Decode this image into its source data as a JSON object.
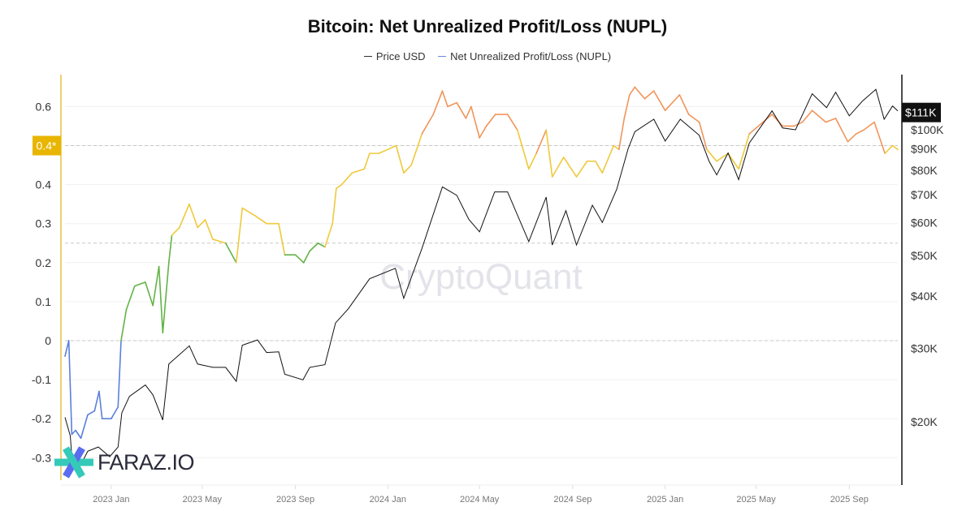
{
  "chart_data": {
    "type": "line",
    "title": "Bitcoin: Net Unrealized Profit/Loss (NUPL)",
    "legend": {
      "placement": "top-center",
      "items": [
        "Price USD",
        "Net Unrealized Profit/Loss (NUPL)"
      ]
    },
    "x_ticks": [
      "2023 Jan",
      "2023 May",
      "2023 Sep",
      "2024 Jan",
      "2024 May",
      "2024 Sep",
      "2025 Jan",
      "2025 May",
      "2025 Sep"
    ],
    "x_range": [
      "2022-11-01",
      "2025-11-04"
    ],
    "y_left": {
      "ticks": [
        "0.6",
        "0.4",
        "0.3",
        "0.2",
        "0.1",
        "0",
        "-0.1",
        "-0.2",
        "-0.3"
      ],
      "tick_values": [
        0.6,
        0.4,
        0.3,
        0.2,
        0.1,
        0,
        -0.1,
        -0.2,
        -0.3
      ],
      "range": [
        -0.37,
        0.68
      ],
      "highlight_label": "0.4*",
      "highlight_value": 0.5,
      "dashed_levels": [
        0,
        0.25,
        0.5
      ]
    },
    "y_right": {
      "scale": "log",
      "ticks": [
        "$100K",
        "$90K",
        "$80K",
        "$70K",
        "$60K",
        "$50K",
        "$40K",
        "$30K",
        "$20K"
      ],
      "tick_values": [
        100000,
        90000,
        80000,
        70000,
        60000,
        50000,
        40000,
        30000,
        20000
      ],
      "current_label": "$111K",
      "current_value": 111000
    },
    "grid": true,
    "zone_colors": {
      "below_0": "#5b7fdb",
      "0_to_0.25": "#62b346",
      "0.25_to_0.5": "#efc93c",
      "above_0.5": "#f0955a"
    },
    "series": [
      {
        "name": "Price USD",
        "color": "#111111",
        "points": [
          [
            "2022-11-01",
            20500
          ],
          [
            "2022-11-08",
            18500
          ],
          [
            "2022-11-10",
            16500
          ],
          [
            "2022-11-22",
            15800
          ],
          [
            "2022-12-01",
            17000
          ],
          [
            "2022-12-15",
            17400
          ],
          [
            "2022-12-30",
            16500
          ],
          [
            "2023-01-10",
            17400
          ],
          [
            "2023-01-15",
            21000
          ],
          [
            "2023-01-25",
            23000
          ],
          [
            "2023-02-15",
            24500
          ],
          [
            "2023-02-25",
            23200
          ],
          [
            "2023-03-10",
            20200
          ],
          [
            "2023-03-18",
            27500
          ],
          [
            "2023-04-14",
            30400
          ],
          [
            "2023-04-25",
            27500
          ],
          [
            "2023-05-15",
            27000
          ],
          [
            "2023-06-01",
            27000
          ],
          [
            "2023-06-15",
            25000
          ],
          [
            "2023-06-23",
            30500
          ],
          [
            "2023-07-13",
            31400
          ],
          [
            "2023-07-25",
            29300
          ],
          [
            "2023-08-10",
            29400
          ],
          [
            "2023-08-18",
            26000
          ],
          [
            "2023-09-11",
            25200
          ],
          [
            "2023-09-20",
            27000
          ],
          [
            "2023-10-10",
            27400
          ],
          [
            "2023-10-24",
            34500
          ],
          [
            "2023-11-10",
            37300
          ],
          [
            "2023-12-08",
            44000
          ],
          [
            "2024-01-11",
            46600
          ],
          [
            "2024-01-22",
            39500
          ],
          [
            "2024-02-15",
            52000
          ],
          [
            "2024-03-13",
            73000
          ],
          [
            "2024-04-01",
            69700
          ],
          [
            "2024-04-17",
            61000
          ],
          [
            "2024-05-01",
            57000
          ],
          [
            "2024-05-21",
            71000
          ],
          [
            "2024-06-07",
            71000
          ],
          [
            "2024-07-05",
            54000
          ],
          [
            "2024-07-28",
            69000
          ],
          [
            "2024-08-05",
            53000
          ],
          [
            "2024-08-23",
            64000
          ],
          [
            "2024-09-06",
            53000
          ],
          [
            "2024-09-27",
            66000
          ],
          [
            "2024-10-10",
            60000
          ],
          [
            "2024-10-29",
            72000
          ],
          [
            "2024-11-13",
            90000
          ],
          [
            "2024-11-22",
            99000
          ],
          [
            "2024-12-17",
            106000
          ],
          [
            "2025-01-01",
            94000
          ],
          [
            "2025-01-21",
            106000
          ],
          [
            "2025-02-15",
            97000
          ],
          [
            "2025-02-28",
            84000
          ],
          [
            "2025-03-10",
            78000
          ],
          [
            "2025-03-25",
            88000
          ],
          [
            "2025-04-08",
            76000
          ],
          [
            "2025-04-22",
            93000
          ],
          [
            "2025-05-22",
            111000
          ],
          [
            "2025-06-05",
            101000
          ],
          [
            "2025-06-22",
            100000
          ],
          [
            "2025-07-14",
            122000
          ],
          [
            "2025-08-02",
            113000
          ],
          [
            "2025-08-14",
            123000
          ],
          [
            "2025-09-01",
            108000
          ],
          [
            "2025-09-18",
            117000
          ],
          [
            "2025-10-06",
            125000
          ],
          [
            "2025-10-17",
            106000
          ],
          [
            "2025-10-28",
            114000
          ],
          [
            "2025-11-04",
            111000
          ]
        ]
      },
      {
        "name": "Net Unrealized Profit/Loss (NUPL)",
        "points": [
          [
            "2022-11-01",
            -0.04
          ],
          [
            "2022-11-06",
            0.0
          ],
          [
            "2022-11-10",
            -0.24
          ],
          [
            "2022-11-15",
            -0.23
          ],
          [
            "2022-11-22",
            -0.25
          ],
          [
            "2022-12-01",
            -0.19
          ],
          [
            "2022-12-10",
            -0.18
          ],
          [
            "2022-12-16",
            -0.13
          ],
          [
            "2022-12-20",
            -0.2
          ],
          [
            "2023-01-01",
            -0.2
          ],
          [
            "2023-01-10",
            -0.17
          ],
          [
            "2023-01-14",
            0.0
          ],
          [
            "2023-01-21",
            0.08
          ],
          [
            "2023-02-01",
            0.14
          ],
          [
            "2023-02-15",
            0.15
          ],
          [
            "2023-02-25",
            0.09
          ],
          [
            "2023-03-05",
            0.19
          ],
          [
            "2023-03-10",
            0.02
          ],
          [
            "2023-03-18",
            0.2
          ],
          [
            "2023-03-22",
            0.27
          ],
          [
            "2023-04-01",
            0.29
          ],
          [
            "2023-04-14",
            0.35
          ],
          [
            "2023-04-25",
            0.29
          ],
          [
            "2023-05-05",
            0.31
          ],
          [
            "2023-05-15",
            0.26
          ],
          [
            "2023-06-01",
            0.25
          ],
          [
            "2023-06-15",
            0.2
          ],
          [
            "2023-06-23",
            0.34
          ],
          [
            "2023-07-10",
            0.32
          ],
          [
            "2023-07-25",
            0.3
          ],
          [
            "2023-08-10",
            0.3
          ],
          [
            "2023-08-18",
            0.22
          ],
          [
            "2023-09-01",
            0.22
          ],
          [
            "2023-09-12",
            0.2
          ],
          [
            "2023-09-20",
            0.23
          ],
          [
            "2023-10-01",
            0.25
          ],
          [
            "2023-10-10",
            0.24
          ],
          [
            "2023-10-20",
            0.3
          ],
          [
            "2023-10-25",
            0.39
          ],
          [
            "2023-11-01",
            0.4
          ],
          [
            "2023-11-15",
            0.43
          ],
          [
            "2023-12-01",
            0.44
          ],
          [
            "2023-12-08",
            0.48
          ],
          [
            "2023-12-20",
            0.48
          ],
          [
            "2024-01-01",
            0.49
          ],
          [
            "2024-01-12",
            0.5
          ],
          [
            "2024-01-22",
            0.43
          ],
          [
            "2024-02-01",
            0.45
          ],
          [
            "2024-02-15",
            0.53
          ],
          [
            "2024-03-01",
            0.58
          ],
          [
            "2024-03-13",
            0.64
          ],
          [
            "2024-03-20",
            0.6
          ],
          [
            "2024-04-01",
            0.61
          ],
          [
            "2024-04-13",
            0.57
          ],
          [
            "2024-04-20",
            0.6
          ],
          [
            "2024-05-01",
            0.52
          ],
          [
            "2024-05-10",
            0.55
          ],
          [
            "2024-05-22",
            0.58
          ],
          [
            "2024-06-07",
            0.58
          ],
          [
            "2024-06-20",
            0.54
          ],
          [
            "2024-07-05",
            0.44
          ],
          [
            "2024-07-15",
            0.48
          ],
          [
            "2024-07-28",
            0.54
          ],
          [
            "2024-08-05",
            0.42
          ],
          [
            "2024-08-20",
            0.47
          ],
          [
            "2024-09-06",
            0.42
          ],
          [
            "2024-09-20",
            0.46
          ],
          [
            "2024-10-01",
            0.46
          ],
          [
            "2024-10-10",
            0.43
          ],
          [
            "2024-10-25",
            0.5
          ],
          [
            "2024-11-01",
            0.49
          ],
          [
            "2024-11-08",
            0.57
          ],
          [
            "2024-11-15",
            0.63
          ],
          [
            "2024-11-22",
            0.65
          ],
          [
            "2024-12-05",
            0.62
          ],
          [
            "2024-12-17",
            0.64
          ],
          [
            "2025-01-01",
            0.59
          ],
          [
            "2025-01-20",
            0.63
          ],
          [
            "2025-02-01",
            0.58
          ],
          [
            "2025-02-15",
            0.56
          ],
          [
            "2025-02-25",
            0.49
          ],
          [
            "2025-03-10",
            0.46
          ],
          [
            "2025-03-25",
            0.48
          ],
          [
            "2025-04-08",
            0.44
          ],
          [
            "2025-04-22",
            0.53
          ],
          [
            "2025-05-10",
            0.56
          ],
          [
            "2025-05-22",
            0.58
          ],
          [
            "2025-06-05",
            0.55
          ],
          [
            "2025-06-20",
            0.55
          ],
          [
            "2025-07-01",
            0.56
          ],
          [
            "2025-07-14",
            0.59
          ],
          [
            "2025-08-01",
            0.56
          ],
          [
            "2025-08-14",
            0.57
          ],
          [
            "2025-08-30",
            0.51
          ],
          [
            "2025-09-10",
            0.53
          ],
          [
            "2025-09-20",
            0.54
          ],
          [
            "2025-10-04",
            0.56
          ],
          [
            "2025-10-18",
            0.48
          ],
          [
            "2025-10-28",
            0.5
          ],
          [
            "2025-11-04",
            0.49
          ]
        ]
      }
    ]
  },
  "legend_colors": {
    "price": "#333333",
    "nupl": "#6f86e0"
  },
  "watermark": "CryptoQuant",
  "logo_text": "FARAZ.IO"
}
